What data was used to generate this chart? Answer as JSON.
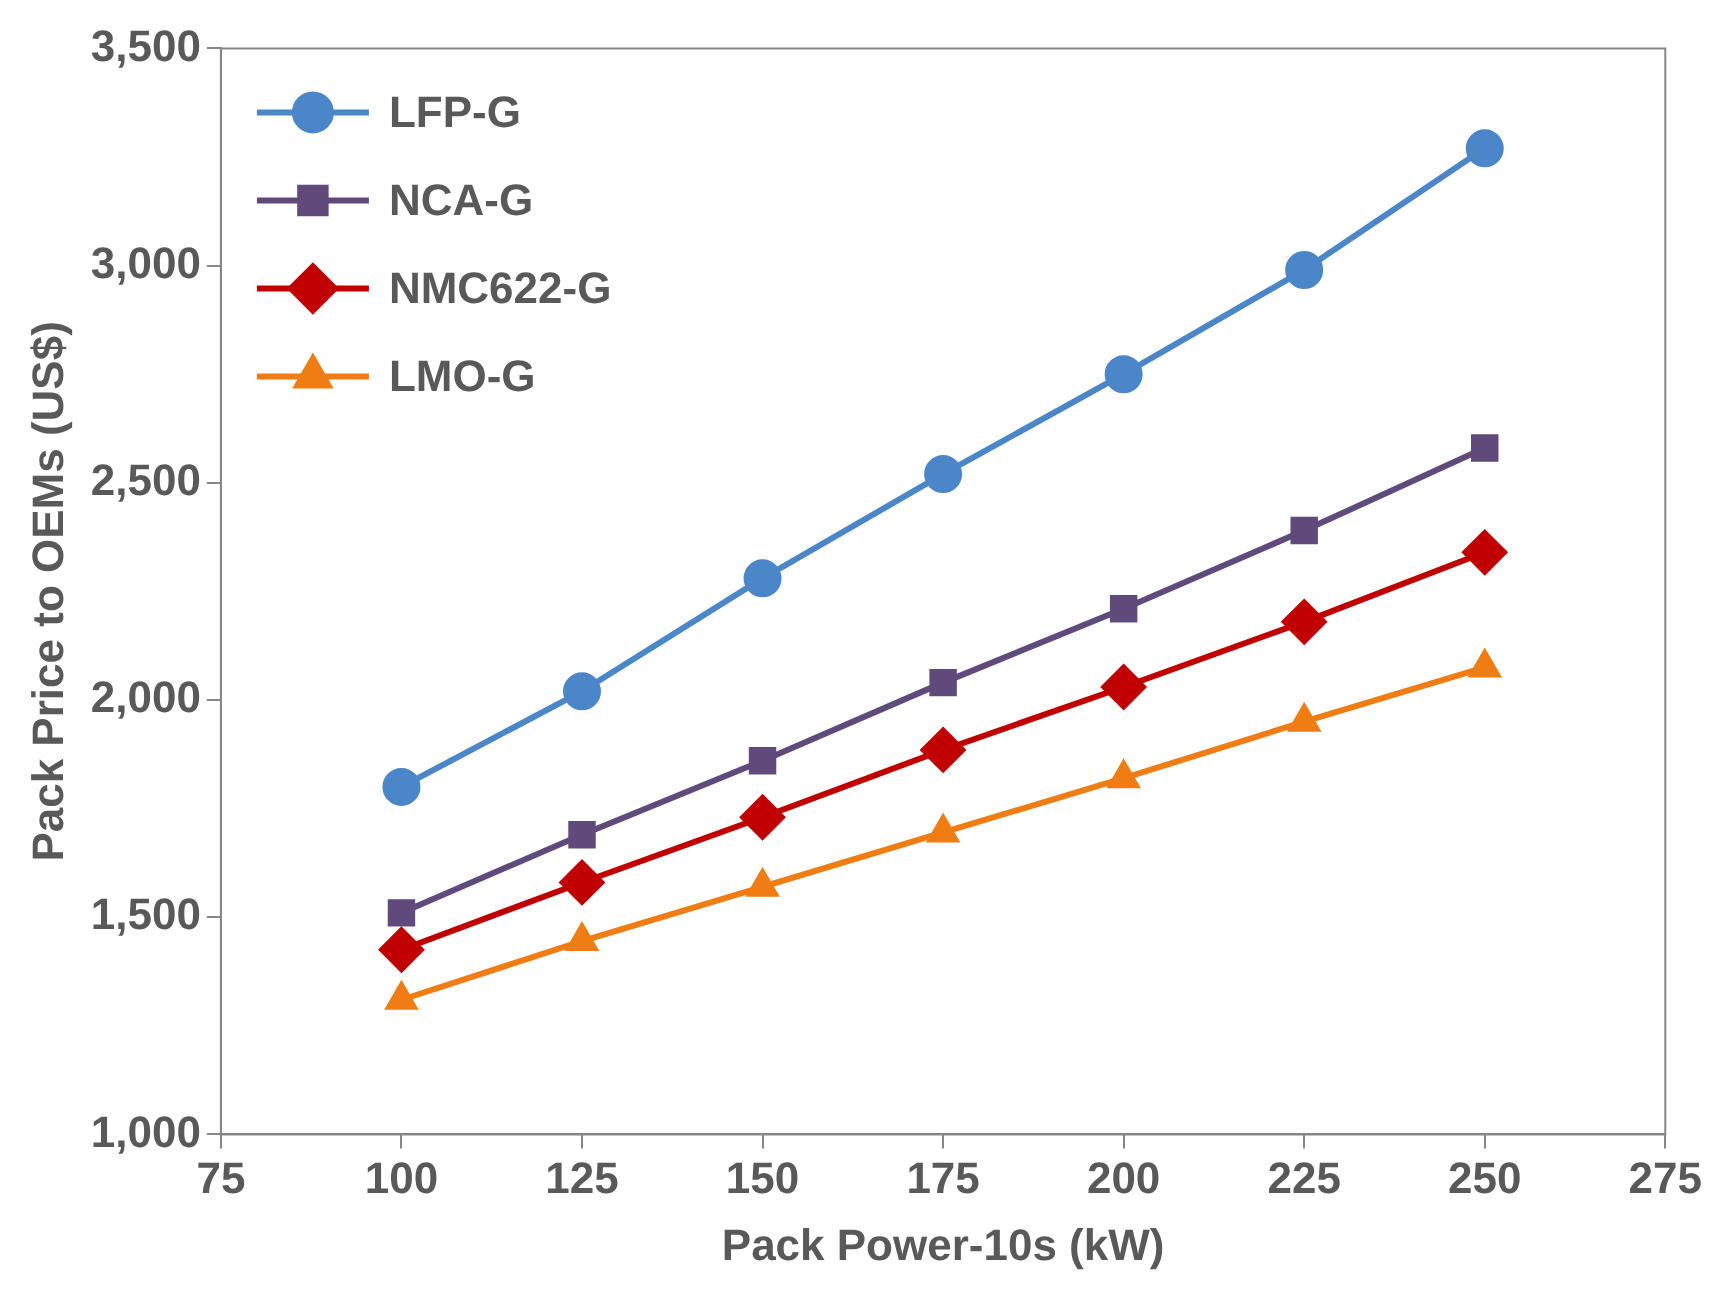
{
  "chart_data": {
    "type": "line",
    "xlabel": "Pack Power-10s (kW)",
    "ylabel": "Pack Price to OEMs (US$)",
    "x": [
      100,
      125,
      150,
      175,
      200,
      225,
      250
    ],
    "series": [
      {
        "name": "LFP-G",
        "color": "#4a86c8",
        "marker": "circle",
        "values": [
          1800,
          2020,
          2280,
          2520,
          2750,
          2990,
          3270
        ]
      },
      {
        "name": "NCA-G",
        "color": "#604a7b",
        "marker": "square",
        "values": [
          1510,
          1690,
          1860,
          2040,
          2210,
          2390,
          2580
        ]
      },
      {
        "name": "NMC622-G",
        "color": "#c00000",
        "marker": "diamond",
        "values": [
          1425,
          1580,
          1730,
          1885,
          2030,
          2180,
          2340
        ]
      },
      {
        "name": "LMO-G",
        "color": "#f07d14",
        "marker": "triangle",
        "values": [
          1310,
          1445,
          1570,
          1695,
          1820,
          1950,
          2075
        ]
      }
    ],
    "xlim": [
      75,
      275
    ],
    "xticks": [
      75,
      100,
      125,
      150,
      175,
      200,
      225,
      250,
      275
    ],
    "ylim": [
      1000,
      3500
    ],
    "yticks": [
      {
        "value": 1000,
        "label": "1,000"
      },
      {
        "value": 1500,
        "label": "1,500"
      },
      {
        "value": 2000,
        "label": "2,000"
      },
      {
        "value": 2500,
        "label": "2,500"
      },
      {
        "value": 3000,
        "label": "3,000"
      },
      {
        "value": 3500,
        "label": "3,500"
      }
    ],
    "legend": "top left",
    "line_style": "solid"
  }
}
